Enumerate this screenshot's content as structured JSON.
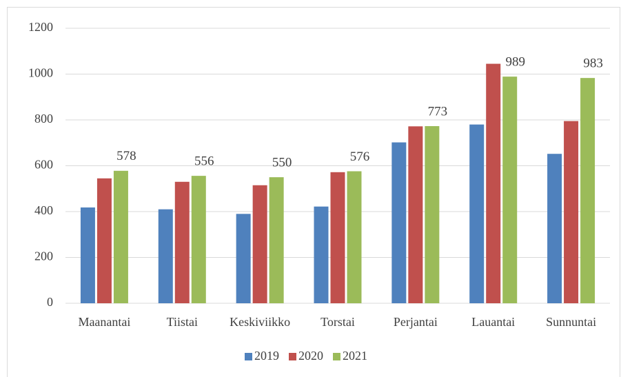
{
  "chart_data": {
    "type": "bar",
    "categories": [
      "Maanantai",
      "Tiistai",
      "Keskiviikko",
      "Torstai",
      "Perjantai",
      "Lauantai",
      "Sunnuntai"
    ],
    "series": [
      {
        "name": "2019",
        "color": "#4f81bd",
        "values": [
          418,
          410,
          390,
          422,
          702,
          780,
          652
        ]
      },
      {
        "name": "2020",
        "color": "#c0504d",
        "values": [
          545,
          530,
          515,
          572,
          772,
          1045,
          795
        ]
      },
      {
        "name": "2021",
        "color": "#9bbb59",
        "values": [
          578,
          556,
          550,
          576,
          773,
          989,
          983
        ],
        "data_labels": true
      }
    ],
    "ylim": [
      0,
      1200
    ],
    "yticks": [
      0,
      200,
      400,
      600,
      800,
      1000,
      1200
    ],
    "grid": true,
    "legend": "bottom"
  }
}
